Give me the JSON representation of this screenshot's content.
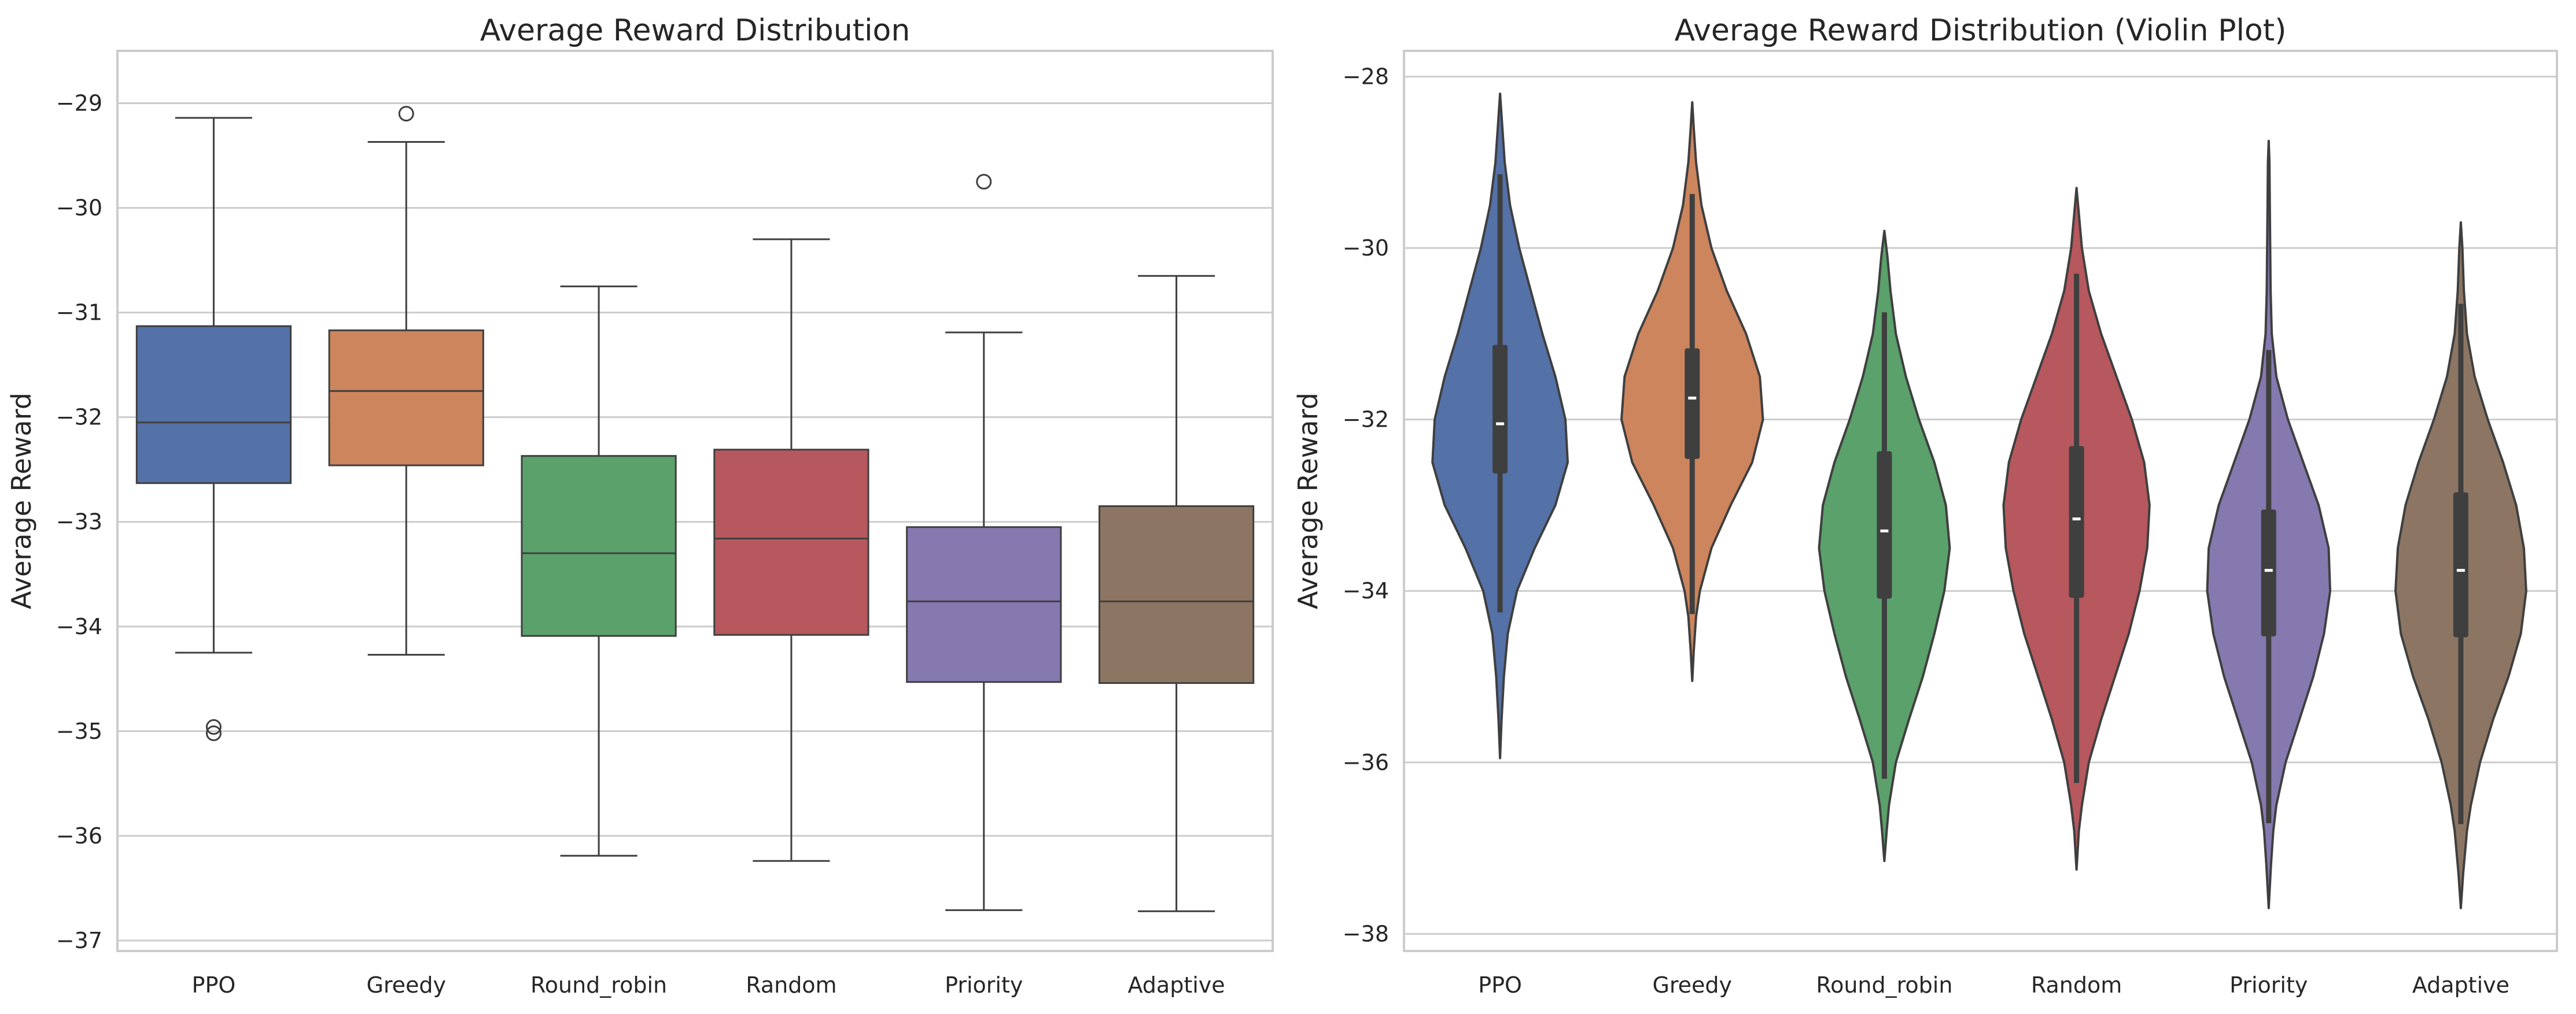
{
  "chart_data": [
    {
      "type": "box",
      "title": "Average Reward Distribution",
      "xlabel": "",
      "ylabel": "Average Reward",
      "ylim": [
        -37.1,
        -28.5
      ],
      "yticks": [
        -29,
        -30,
        -31,
        -32,
        -33,
        -34,
        -35,
        -36,
        -37
      ],
      "grid": true,
      "categories": [
        "PPO",
        "Greedy",
        "Round_robin",
        "Random",
        "Priority",
        "Adaptive"
      ],
      "colors": [
        "#5471a8",
        "#cd855d",
        "#5aa16b",
        "#b6585d",
        "#8679b0",
        "#8c7663"
      ],
      "boxes": [
        {
          "whislo": -34.25,
          "q1": -32.63,
          "med": -32.05,
          "q3": -31.13,
          "whishi": -29.14,
          "fliers": [
            -34.96,
            -35.02
          ]
        },
        {
          "whislo": -34.27,
          "q1": -32.46,
          "med": -31.75,
          "q3": -31.17,
          "whishi": -29.37,
          "fliers": [
            -29.1
          ]
        },
        {
          "whislo": -36.19,
          "q1": -34.09,
          "med": -33.3,
          "q3": -32.37,
          "whishi": -30.75,
          "fliers": []
        },
        {
          "whislo": -36.24,
          "q1": -34.08,
          "med": -33.16,
          "q3": -32.31,
          "whishi": -30.3,
          "fliers": []
        },
        {
          "whislo": -36.71,
          "q1": -34.53,
          "med": -33.76,
          "q3": -33.05,
          "whishi": -31.19,
          "fliers": [
            -29.75
          ]
        },
        {
          "whislo": -36.72,
          "q1": -34.54,
          "med": -33.76,
          "q3": -32.85,
          "whishi": -30.65,
          "fliers": []
        }
      ]
    },
    {
      "type": "violin",
      "title": "Average Reward Distribution (Violin Plot)",
      "xlabel": "",
      "ylabel": "Average Reward",
      "ylim": [
        -38.2,
        -27.7
      ],
      "yticks": [
        -28,
        -30,
        -32,
        -34,
        -36,
        -38
      ],
      "grid": true,
      "categories": [
        "PPO",
        "Greedy",
        "Round_robin",
        "Random",
        "Priority",
        "Adaptive"
      ],
      "colors": [
        "#5471a8",
        "#cd855d",
        "#5aa16b",
        "#b6585d",
        "#8679b0",
        "#8c7663"
      ],
      "violins": [
        {
          "min": -35.95,
          "max": -28.2,
          "whislo": -34.25,
          "q1": -32.63,
          "med": -32.05,
          "q3": -31.13,
          "whishi": -29.14,
          "profile": [
            [
              -35.95,
              0.0
            ],
            [
              -35.5,
              0.02
            ],
            [
              -35.0,
              0.05
            ],
            [
              -34.5,
              0.1
            ],
            [
              -34.0,
              0.22
            ],
            [
              -33.5,
              0.45
            ],
            [
              -33.0,
              0.72
            ],
            [
              -32.5,
              0.88
            ],
            [
              -32.0,
              0.85
            ],
            [
              -31.5,
              0.72
            ],
            [
              -31.0,
              0.55
            ],
            [
              -30.5,
              0.4
            ],
            [
              -30.0,
              0.25
            ],
            [
              -29.5,
              0.13
            ],
            [
              -29.0,
              0.06
            ],
            [
              -28.6,
              0.03
            ],
            [
              -28.2,
              0.0
            ]
          ]
        },
        {
          "min": -35.05,
          "max": -28.3,
          "whislo": -34.27,
          "q1": -32.46,
          "med": -31.75,
          "q3": -31.17,
          "whishi": -29.37,
          "profile": [
            [
              -35.05,
              0.0
            ],
            [
              -34.7,
              0.02
            ],
            [
              -34.3,
              0.05
            ],
            [
              -34.0,
              0.1
            ],
            [
              -33.5,
              0.25
            ],
            [
              -33.0,
              0.5
            ],
            [
              -32.5,
              0.78
            ],
            [
              -32.0,
              0.92
            ],
            [
              -31.5,
              0.88
            ],
            [
              -31.0,
              0.7
            ],
            [
              -30.5,
              0.45
            ],
            [
              -30.0,
              0.25
            ],
            [
              -29.5,
              0.12
            ],
            [
              -29.0,
              0.05
            ],
            [
              -28.6,
              0.02
            ],
            [
              -28.3,
              0.0
            ]
          ]
        },
        {
          "min": -37.15,
          "max": -29.8,
          "whislo": -36.19,
          "q1": -34.09,
          "med": -33.3,
          "q3": -32.37,
          "whishi": -30.75,
          "profile": [
            [
              -37.15,
              0.0
            ],
            [
              -36.8,
              0.03
            ],
            [
              -36.5,
              0.06
            ],
            [
              -36.0,
              0.15
            ],
            [
              -35.5,
              0.32
            ],
            [
              -35.0,
              0.5
            ],
            [
              -34.5,
              0.65
            ],
            [
              -34.0,
              0.78
            ],
            [
              -33.5,
              0.85
            ],
            [
              -33.0,
              0.8
            ],
            [
              -32.5,
              0.65
            ],
            [
              -32.0,
              0.45
            ],
            [
              -31.5,
              0.28
            ],
            [
              -31.0,
              0.15
            ],
            [
              -30.5,
              0.08
            ],
            [
              -30.1,
              0.04
            ],
            [
              -29.8,
              0.0
            ]
          ]
        },
        {
          "min": -37.25,
          "max": -29.3,
          "whislo": -36.24,
          "q1": -34.08,
          "med": -33.16,
          "q3": -32.31,
          "whishi": -30.3,
          "profile": [
            [
              -37.25,
              0.0
            ],
            [
              -36.8,
              0.03
            ],
            [
              -36.5,
              0.07
            ],
            [
              -36.0,
              0.16
            ],
            [
              -35.5,
              0.32
            ],
            [
              -35.0,
              0.5
            ],
            [
              -34.5,
              0.68
            ],
            [
              -34.0,
              0.82
            ],
            [
              -33.5,
              0.92
            ],
            [
              -33.0,
              0.95
            ],
            [
              -32.5,
              0.88
            ],
            [
              -32.0,
              0.72
            ],
            [
              -31.5,
              0.52
            ],
            [
              -31.0,
              0.32
            ],
            [
              -30.5,
              0.16
            ],
            [
              -30.0,
              0.07
            ],
            [
              -29.6,
              0.03
            ],
            [
              -29.3,
              0.0
            ]
          ]
        },
        {
          "min": -37.7,
          "max": -28.75,
          "whislo": -36.71,
          "q1": -34.53,
          "med": -33.76,
          "q3": -33.05,
          "whishi": -31.19,
          "profile": [
            [
              -37.7,
              0.0
            ],
            [
              -37.2,
              0.03
            ],
            [
              -36.8,
              0.06
            ],
            [
              -36.5,
              0.1
            ],
            [
              -36.0,
              0.22
            ],
            [
              -35.5,
              0.4
            ],
            [
              -35.0,
              0.58
            ],
            [
              -34.5,
              0.72
            ],
            [
              -34.0,
              0.8
            ],
            [
              -33.5,
              0.78
            ],
            [
              -33.0,
              0.65
            ],
            [
              -32.5,
              0.45
            ],
            [
              -32.0,
              0.25
            ],
            [
              -31.5,
              0.1
            ],
            [
              -31.0,
              0.04
            ],
            [
              -30.5,
              0.025
            ],
            [
              -30.0,
              0.02
            ],
            [
              -29.5,
              0.015
            ],
            [
              -29.0,
              0.01
            ],
            [
              -28.75,
              0.0
            ]
          ]
        },
        {
          "min": -37.7,
          "max": -29.7,
          "whislo": -36.72,
          "q1": -34.54,
          "med": -33.76,
          "q3": -32.85,
          "whishi": -30.65,
          "profile": [
            [
              -37.7,
              0.0
            ],
            [
              -37.3,
              0.03
            ],
            [
              -36.8,
              0.08
            ],
            [
              -36.5,
              0.13
            ],
            [
              -36.0,
              0.25
            ],
            [
              -35.5,
              0.42
            ],
            [
              -35.0,
              0.62
            ],
            [
              -34.5,
              0.78
            ],
            [
              -34.0,
              0.85
            ],
            [
              -33.5,
              0.82
            ],
            [
              -33.0,
              0.72
            ],
            [
              -32.5,
              0.55
            ],
            [
              -32.0,
              0.35
            ],
            [
              -31.5,
              0.18
            ],
            [
              -31.0,
              0.08
            ],
            [
              -30.5,
              0.04
            ],
            [
              -30.0,
              0.02
            ],
            [
              -29.7,
              0.0
            ]
          ]
        }
      ]
    }
  ]
}
